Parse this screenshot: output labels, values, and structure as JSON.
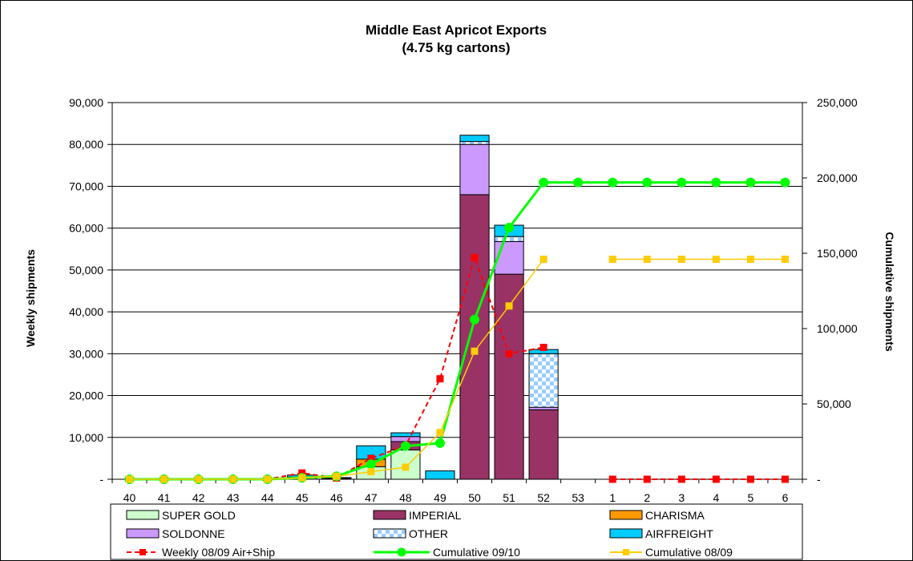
{
  "chart_data": {
    "type": "bar",
    "title": "Middle East Apricot Exports",
    "subtitle": "(4.75 kg cartons)",
    "ylabel": "Weekly shipments",
    "y2label": "Cumulative shipments",
    "xlabel": "",
    "ylim": [
      0,
      90000
    ],
    "y2lim": [
      0,
      250000
    ],
    "yticks": [
      0,
      10000,
      20000,
      30000,
      40000,
      50000,
      60000,
      70000,
      80000,
      90000
    ],
    "yticklabels": [
      "-",
      "10,000",
      "20,000",
      "30,000",
      "40,000",
      "50,000",
      "60,000",
      "70,000",
      "80,000",
      "90,000"
    ],
    "y2ticks": [
      0,
      50000,
      100000,
      150000,
      200000,
      250000
    ],
    "y2ticklabels": [
      "-",
      "50,000",
      "100,000",
      "150,000",
      "200,000",
      "250,000"
    ],
    "grid": "horizontal",
    "legend_position": "bottom",
    "categories": [
      "40",
      "41",
      "42",
      "43",
      "44",
      "45",
      "46",
      "47",
      "48",
      "49",
      "50",
      "51",
      "52",
      "53",
      "1",
      "2",
      "3",
      "4",
      "5",
      "6"
    ],
    "stacked_bars": [
      {
        "name": "SUPER GOLD",
        "color": "#ccffcc",
        "values": [
          0,
          0,
          0,
          0,
          0,
          300,
          200,
          3000,
          7000,
          0,
          0,
          0,
          0,
          0,
          0,
          0,
          0,
          0,
          0,
          0
        ]
      },
      {
        "name": "IMPERIAL",
        "color": "#993366",
        "values": [
          0,
          0,
          0,
          0,
          0,
          0,
          0,
          0,
          2000,
          0,
          68000,
          49000,
          16600,
          0,
          0,
          0,
          0,
          0,
          0,
          0
        ]
      },
      {
        "name": "CHARISMA",
        "color": "#ff9900",
        "values": [
          0,
          0,
          0,
          0,
          0,
          200,
          100,
          1800,
          0,
          0,
          0,
          0,
          0,
          0,
          0,
          0,
          0,
          0,
          0,
          0
        ]
      },
      {
        "name": "SOLDONNE",
        "color": "#cc99ff",
        "values": [
          0,
          0,
          0,
          0,
          0,
          0,
          0,
          0,
          1200,
          0,
          12000,
          7800,
          600,
          0,
          0,
          0,
          0,
          0,
          0,
          0
        ]
      },
      {
        "name": "OTHER",
        "color": "#99ccff",
        "values": [
          0,
          0,
          0,
          0,
          0,
          0,
          0,
          0,
          0,
          0,
          700,
          1200,
          12800,
          0,
          0,
          0,
          0,
          0,
          0,
          0
        ]
      },
      {
        "name": "AIRFREIGHT",
        "color": "#00ccff",
        "values": [
          0,
          0,
          0,
          0,
          0,
          500,
          100,
          3200,
          900,
          2000,
          1500,
          2700,
          1000,
          0,
          0,
          0,
          0,
          0,
          0,
          0
        ]
      }
    ],
    "lines": [
      {
        "name": "Weekly 08/09 Air+Ship",
        "axis": "left",
        "color": "#ff0000",
        "style": "dashed",
        "marker": "square",
        "values": [
          0,
          0,
          0,
          0,
          0,
          1500,
          300,
          5000,
          8000,
          24000,
          53000,
          30000,
          31500,
          null,
          0,
          0,
          0,
          0,
          0,
          0
        ]
      },
      {
        "name": "Cumulative 09/10",
        "axis": "right",
        "color": "#00ff00",
        "style": "solid",
        "marker": "circle",
        "values": [
          0,
          0,
          0,
          0,
          0,
          1000,
          2000,
          10000,
          22000,
          24000,
          106000,
          167000,
          197000,
          197000,
          197000,
          197000,
          197000,
          197000,
          197000,
          197000
        ]
      },
      {
        "name": "Cumulative 08/09",
        "axis": "right",
        "color": "#ffcc00",
        "style": "solid",
        "marker": "square",
        "values": [
          0,
          0,
          0,
          0,
          0,
          1000,
          2000,
          5000,
          8000,
          31000,
          85000,
          115000,
          146000,
          null,
          146000,
          146000,
          146000,
          146000,
          146000,
          146000
        ]
      }
    ]
  }
}
